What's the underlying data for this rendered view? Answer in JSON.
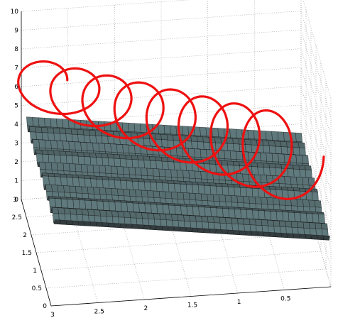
{
  "chart_data": {
    "type": "surface",
    "z_axis": {
      "ticks": [
        "0",
        "1",
        "2",
        "3",
        "4",
        "5",
        "6",
        "7",
        "8",
        "9",
        "10"
      ],
      "lim": [
        0,
        10
      ]
    },
    "y_axis": {
      "ticks": [
        "0",
        "0.5",
        "1",
        "1.5",
        "2",
        "2.5",
        "3"
      ],
      "lim": [
        0,
        3
      ]
    },
    "x_axis": {
      "ticks": [
        "3",
        "2.5",
        "2",
        "1.5",
        "1",
        "0.5"
      ],
      "lim": [
        0,
        3
      ]
    },
    "surface": {
      "description": "wavy mesh surface",
      "ripple_rows": 8,
      "color": "#5f7374",
      "edge_color": "#111111"
    },
    "helix": {
      "turns": 8,
      "color": "#ee1111",
      "z_range": [
        3,
        8
      ]
    },
    "grid": true
  }
}
